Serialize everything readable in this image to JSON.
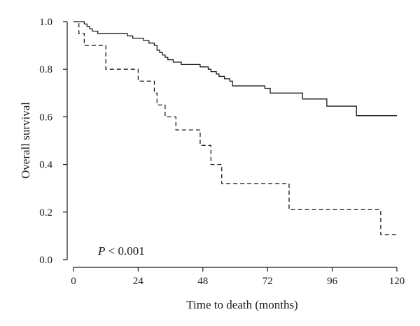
{
  "chart_data": {
    "type": "line",
    "subtype": "kaplan-meier-step",
    "title": "",
    "xlabel": "Time to death (months)",
    "ylabel": "Overall survival",
    "xlim": [
      0,
      120
    ],
    "ylim": [
      0,
      1
    ],
    "x_ticks": [
      0,
      24,
      48,
      72,
      96,
      120
    ],
    "y_ticks": [
      0.0,
      0.2,
      0.4,
      0.6,
      0.8,
      1.0
    ],
    "y_tick_labels": [
      "0.0",
      "0.2",
      "0.4",
      "0.6",
      "0.8",
      "1.0"
    ],
    "grid": false,
    "legend": "none",
    "annotation": {
      "italic_part": "P",
      "rest": " < 0.001"
    },
    "series": [
      {
        "line_style": "solid",
        "color": "#1a1a1a",
        "points": [
          [
            0,
            1.0
          ],
          [
            4,
            0.99
          ],
          [
            5,
            0.98
          ],
          [
            6,
            0.97
          ],
          [
            7,
            0.96
          ],
          [
            9,
            0.95
          ],
          [
            20,
            0.94
          ],
          [
            22,
            0.93
          ],
          [
            26,
            0.92
          ],
          [
            28,
            0.91
          ],
          [
            30,
            0.9
          ],
          [
            31,
            0.88
          ],
          [
            32,
            0.87
          ],
          [
            33,
            0.86
          ],
          [
            34,
            0.85
          ],
          [
            35,
            0.84
          ],
          [
            37,
            0.83
          ],
          [
            40,
            0.82
          ],
          [
            47,
            0.81
          ],
          [
            50,
            0.8
          ],
          [
            51,
            0.79
          ],
          [
            53,
            0.78
          ],
          [
            54,
            0.77
          ],
          [
            56,
            0.76
          ],
          [
            58,
            0.75
          ],
          [
            59,
            0.73
          ],
          [
            71,
            0.72
          ],
          [
            73,
            0.7
          ],
          [
            85,
            0.675
          ],
          [
            94,
            0.645
          ],
          [
            105,
            0.605
          ],
          [
            120,
            0.605
          ]
        ]
      },
      {
        "line_style": "dashed",
        "color": "#1a1a1a",
        "points": [
          [
            0,
            1.0
          ],
          [
            2,
            0.95
          ],
          [
            4,
            0.9
          ],
          [
            12,
            0.8
          ],
          [
            24,
            0.75
          ],
          [
            30,
            0.7
          ],
          [
            31,
            0.65
          ],
          [
            34,
            0.6
          ],
          [
            38,
            0.545
          ],
          [
            47,
            0.48
          ],
          [
            51,
            0.4
          ],
          [
            55,
            0.32
          ],
          [
            80,
            0.21
          ],
          [
            114,
            0.105
          ],
          [
            120,
            0.105
          ]
        ]
      }
    ]
  }
}
